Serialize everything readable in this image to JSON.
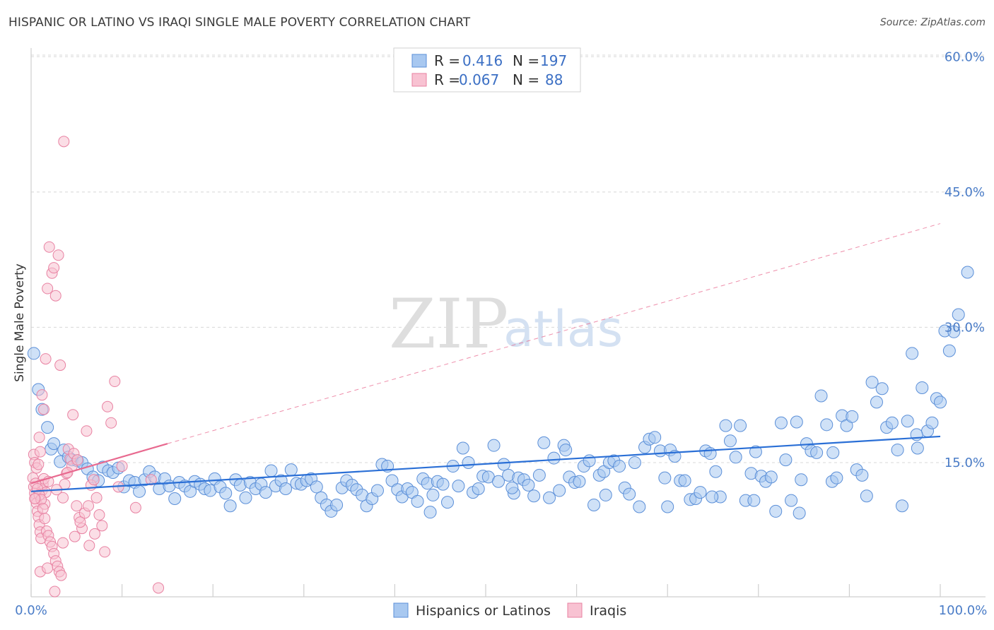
{
  "title": "HISPANIC OR LATINO VS IRAQI SINGLE MALE POVERTY CORRELATION CHART",
  "source": "Source: ZipAtlas.com",
  "watermark": {
    "zip": "ZIP",
    "atlas": "atlas"
  },
  "colors": {
    "blue_fill": "#a8c8f0",
    "blue_stroke": "#5b8fd8",
    "blue_line": "#2a6fd6",
    "pink_fill": "#f8c2d2",
    "pink_stroke": "#e882a2",
    "pink_line": "#e8698f",
    "grid": "#d8d8d8",
    "axis_text": "#4a7cc7"
  },
  "legend": {
    "rows": [
      {
        "r_label": "R =",
        "r_value": "0.416",
        "n_label": "N =",
        "n_value": "197"
      },
      {
        "r_label": "R =",
        "r_value": "0.067",
        "n_label": "N =",
        "n_value": "88"
      }
    ]
  },
  "bottom_legend": [
    "Hispanics or Latinos",
    "Iraqis"
  ],
  "chart_data": {
    "type": "scatter",
    "title": "HISPANIC OR LATINO VS IRAQI SINGLE MALE POVERTY CORRELATION CHART",
    "xlabel": "",
    "ylabel": "Single Male Poverty",
    "xlim": [
      0,
      100
    ],
    "ylim": [
      0,
      65
    ],
    "x_tick_labels": [
      "0.0%",
      "100.0%"
    ],
    "y_ticks": [
      15,
      30,
      45,
      60
    ],
    "y_tick_labels": [
      "15.0%",
      "30.0%",
      "45.0%",
      "60.0%"
    ],
    "grid": true,
    "legend_position": "top-center",
    "series": [
      {
        "name": "Hispanics or Latinos",
        "R": 0.416,
        "N": 197,
        "trend": {
          "x": [
            0,
            100
          ],
          "y": [
            11.8,
            17.9
          ]
        },
        "points": [
          [
            0.3,
            27.1
          ],
          [
            0.8,
            23.1
          ],
          [
            1.2,
            20.9
          ],
          [
            1.8,
            18.9
          ],
          [
            2.2,
            16.5
          ],
          [
            2.5,
            17.1
          ],
          [
            3.2,
            15.1
          ],
          [
            3.6,
            16.4
          ],
          [
            4.1,
            15.6
          ],
          [
            4.5,
            15.3
          ],
          [
            5.1,
            15.2
          ],
          [
            5.6,
            15.0
          ],
          [
            6.2,
            14.3
          ],
          [
            6.8,
            13.4
          ],
          [
            7.4,
            13.0
          ],
          [
            7.9,
            14.5
          ],
          [
            8.5,
            14.1
          ],
          [
            9.0,
            13.9
          ],
          [
            9.6,
            14.4
          ],
          [
            10.2,
            12.3
          ],
          [
            10.8,
            13.0
          ],
          [
            11.4,
            12.8
          ],
          [
            11.9,
            11.8
          ],
          [
            12.5,
            13.1
          ],
          [
            13.0,
            14.0
          ],
          [
            13.6,
            13.4
          ],
          [
            14.1,
            12.1
          ],
          [
            14.7,
            13.2
          ],
          [
            15.2,
            12.4
          ],
          [
            15.8,
            11.0
          ],
          [
            16.3,
            12.8
          ],
          [
            16.9,
            12.4
          ],
          [
            17.5,
            11.8
          ],
          [
            18.0,
            12.9
          ],
          [
            18.6,
            12.6
          ],
          [
            19.1,
            12.1
          ],
          [
            19.7,
            11.9
          ],
          [
            20.2,
            13.2
          ],
          [
            20.8,
            12.3
          ],
          [
            21.4,
            11.6
          ],
          [
            21.9,
            10.2
          ],
          [
            22.5,
            13.1
          ],
          [
            23.0,
            12.5
          ],
          [
            23.6,
            11.1
          ],
          [
            24.1,
            12.8
          ],
          [
            24.7,
            12.1
          ],
          [
            25.3,
            12.6
          ],
          [
            25.8,
            11.7
          ],
          [
            26.4,
            14.1
          ],
          [
            26.9,
            12.4
          ],
          [
            27.5,
            13.0
          ],
          [
            28.0,
            12.1
          ],
          [
            28.6,
            14.2
          ],
          [
            29.2,
            12.7
          ],
          [
            29.7,
            12.6
          ],
          [
            30.3,
            13.0
          ],
          [
            30.8,
            13.2
          ],
          [
            31.4,
            12.3
          ],
          [
            31.9,
            11.1
          ],
          [
            32.5,
            10.3
          ],
          [
            33.0,
            9.6
          ],
          [
            33.6,
            10.3
          ],
          [
            34.2,
            12.2
          ],
          [
            34.7,
            13.0
          ],
          [
            35.3,
            12.5
          ],
          [
            35.8,
            12.0
          ],
          [
            36.4,
            11.4
          ],
          [
            36.9,
            10.2
          ],
          [
            37.5,
            11.0
          ],
          [
            38.1,
            11.9
          ],
          [
            38.6,
            14.8
          ],
          [
            39.2,
            14.6
          ],
          [
            39.7,
            13.0
          ],
          [
            40.3,
            12.0
          ],
          [
            40.8,
            11.2
          ],
          [
            41.4,
            12.1
          ],
          [
            41.9,
            11.7
          ],
          [
            42.5,
            10.7
          ],
          [
            43.1,
            13.2
          ],
          [
            43.6,
            12.7
          ],
          [
            44.2,
            11.4
          ],
          [
            44.7,
            12.9
          ],
          [
            45.3,
            12.6
          ],
          [
            45.8,
            10.6
          ],
          [
            46.4,
            14.6
          ],
          [
            47.0,
            12.4
          ],
          [
            47.5,
            16.6
          ],
          [
            48.1,
            15.0
          ],
          [
            48.6,
            11.7
          ],
          [
            49.2,
            12.1
          ],
          [
            49.7,
            13.5
          ],
          [
            50.3,
            13.4
          ],
          [
            50.9,
            16.9
          ],
          [
            51.4,
            12.9
          ],
          [
            52.0,
            14.8
          ],
          [
            52.5,
            13.6
          ],
          [
            53.1,
            11.6
          ],
          [
            53.6,
            13.3
          ],
          [
            54.2,
            13.1
          ],
          [
            54.7,
            12.5
          ],
          [
            55.3,
            11.3
          ],
          [
            55.9,
            13.6
          ],
          [
            56.4,
            17.2
          ],
          [
            57.0,
            11.1
          ],
          [
            57.5,
            15.5
          ],
          [
            58.1,
            11.9
          ],
          [
            58.6,
            16.9
          ],
          [
            59.2,
            13.4
          ],
          [
            59.8,
            12.8
          ],
          [
            60.3,
            12.9
          ],
          [
            60.8,
            14.6
          ],
          [
            61.4,
            15.2
          ],
          [
            61.9,
            10.3
          ],
          [
            62.5,
            13.6
          ],
          [
            63.0,
            14.0
          ],
          [
            63.6,
            15.0
          ],
          [
            64.1,
            15.2
          ],
          [
            64.7,
            14.6
          ],
          [
            65.3,
            12.2
          ],
          [
            65.8,
            11.5
          ],
          [
            66.4,
            15.0
          ],
          [
            66.9,
            10.1
          ],
          [
            67.5,
            16.7
          ],
          [
            68.0,
            17.6
          ],
          [
            68.6,
            17.8
          ],
          [
            69.2,
            16.3
          ],
          [
            69.7,
            13.3
          ],
          [
            70.3,
            16.4
          ],
          [
            70.8,
            15.7
          ],
          [
            71.4,
            13.0
          ],
          [
            71.9,
            13.0
          ],
          [
            72.5,
            10.9
          ],
          [
            73.1,
            11.0
          ],
          [
            73.6,
            11.7
          ],
          [
            74.2,
            16.3
          ],
          [
            74.7,
            16.0
          ],
          [
            75.3,
            14.0
          ],
          [
            75.8,
            11.2
          ],
          [
            76.4,
            19.1
          ],
          [
            76.9,
            17.4
          ],
          [
            77.5,
            15.6
          ],
          [
            78.0,
            19.1
          ],
          [
            78.6,
            10.8
          ],
          [
            79.2,
            13.8
          ],
          [
            79.7,
            16.2
          ],
          [
            80.3,
            13.5
          ],
          [
            80.8,
            12.9
          ],
          [
            81.4,
            13.4
          ],
          [
            81.9,
            9.6
          ],
          [
            82.5,
            19.4
          ],
          [
            83.0,
            15.3
          ],
          [
            83.6,
            10.8
          ],
          [
            84.2,
            19.5
          ],
          [
            84.7,
            13.1
          ],
          [
            85.3,
            17.1
          ],
          [
            85.8,
            16.3
          ],
          [
            86.4,
            16.1
          ],
          [
            86.9,
            22.4
          ],
          [
            87.5,
            19.2
          ],
          [
            88.1,
            12.9
          ],
          [
            88.6,
            13.3
          ],
          [
            89.2,
            20.2
          ],
          [
            89.7,
            19.1
          ],
          [
            90.3,
            20.1
          ],
          [
            90.8,
            14.2
          ],
          [
            91.4,
            13.6
          ],
          [
            91.9,
            11.3
          ],
          [
            92.5,
            23.9
          ],
          [
            93.0,
            21.7
          ],
          [
            93.6,
            23.2
          ],
          [
            94.1,
            18.9
          ],
          [
            94.7,
            19.4
          ],
          [
            95.3,
            16.4
          ],
          [
            95.8,
            10.2
          ],
          [
            96.4,
            19.6
          ],
          [
            96.9,
            27.1
          ],
          [
            97.5,
            16.6
          ],
          [
            98.0,
            23.3
          ],
          [
            98.6,
            18.5
          ],
          [
            99.1,
            19.4
          ],
          [
            99.6,
            22.1
          ],
          [
            100.0,
            21.7
          ],
          [
            100.5,
            29.6
          ],
          [
            101.0,
            27.4
          ],
          [
            101.5,
            29.5
          ],
          [
            102.0,
            31.4
          ],
          [
            103.0,
            36.1
          ],
          [
            97.4,
            18.1
          ],
          [
            43.9,
            9.5
          ],
          [
            52.9,
            12.2
          ],
          [
            58.8,
            16.4
          ],
          [
            63.2,
            11.4
          ],
          [
            70.0,
            10.1
          ],
          [
            74.9,
            11.2
          ],
          [
            79.5,
            10.8
          ],
          [
            84.5,
            9.4
          ],
          [
            88.2,
            16.1
          ]
        ]
      },
      {
        "name": "Iraqis",
        "R": 0.067,
        "N": 88,
        "trend_solid": {
          "x": [
            0,
            15
          ],
          "y": [
            12.7,
            17.1
          ]
        },
        "trend_dashed": {
          "x": [
            15,
            100
          ],
          "y": [
            17.1,
            41.5
          ]
        },
        "points": [
          [
            0.2,
            13.3
          ],
          [
            0.3,
            12.3
          ],
          [
            0.4,
            11.6
          ],
          [
            0.5,
            11.0
          ],
          [
            0.6,
            10.5
          ],
          [
            0.7,
            9.6
          ],
          [
            0.8,
            9.0
          ],
          [
            0.9,
            8.1
          ],
          [
            1.0,
            7.3
          ],
          [
            1.1,
            6.6
          ],
          [
            1.2,
            11.9
          ],
          [
            1.3,
            12.6
          ],
          [
            1.4,
            13.2
          ],
          [
            1.5,
            10.4
          ],
          [
            1.6,
            11.7
          ],
          [
            0.3,
            15.9
          ],
          [
            0.4,
            15.0
          ],
          [
            0.6,
            14.4
          ],
          [
            0.8,
            14.8
          ],
          [
            1.0,
            16.2
          ],
          [
            1.2,
            22.5
          ],
          [
            1.4,
            20.9
          ],
          [
            1.6,
            26.5
          ],
          [
            1.8,
            34.3
          ],
          [
            2.0,
            38.9
          ],
          [
            2.3,
            36.0
          ],
          [
            2.5,
            36.6
          ],
          [
            2.7,
            33.5
          ],
          [
            3.0,
            38.0
          ],
          [
            3.2,
            25.8
          ],
          [
            0.5,
            12.7
          ],
          [
            0.7,
            12.1
          ],
          [
            0.9,
            11.4
          ],
          [
            1.1,
            10.9
          ],
          [
            1.3,
            9.9
          ],
          [
            1.5,
            8.8
          ],
          [
            1.7,
            7.4
          ],
          [
            1.9,
            6.9
          ],
          [
            2.1,
            6.2
          ],
          [
            2.3,
            5.7
          ],
          [
            2.5,
            4.9
          ],
          [
            2.7,
            4.1
          ],
          [
            2.9,
            3.5
          ],
          [
            3.1,
            2.9
          ],
          [
            3.3,
            2.5
          ],
          [
            3.5,
            11.1
          ],
          [
            3.7,
            12.6
          ],
          [
            3.9,
            13.8
          ],
          [
            4.1,
            16.5
          ],
          [
            4.3,
            15.4
          ],
          [
            4.5,
            14.6
          ],
          [
            4.7,
            16.0
          ],
          [
            5.0,
            10.2
          ],
          [
            5.3,
            8.9
          ],
          [
            5.6,
            7.7
          ],
          [
            5.9,
            9.4
          ],
          [
            6.1,
            18.5
          ],
          [
            6.3,
            10.2
          ],
          [
            6.6,
            12.5
          ],
          [
            6.9,
            13.1
          ],
          [
            7.2,
            11.1
          ],
          [
            7.5,
            9.2
          ],
          [
            7.8,
            8.0
          ],
          [
            8.1,
            5.1
          ],
          [
            8.4,
            21.2
          ],
          [
            8.8,
            19.4
          ],
          [
            9.2,
            24.0
          ],
          [
            9.6,
            12.3
          ],
          [
            10.0,
            14.6
          ],
          [
            3.6,
            50.6
          ],
          [
            4.6,
            20.3
          ],
          [
            5.1,
            15.3
          ],
          [
            1.0,
            2.9
          ],
          [
            1.8,
            3.3
          ],
          [
            2.6,
            0.7
          ],
          [
            3.5,
            6.1
          ],
          [
            4.8,
            6.8
          ],
          [
            5.4,
            8.4
          ],
          [
            6.4,
            5.8
          ],
          [
            7.0,
            7.1
          ],
          [
            14.0,
            1.1
          ],
          [
            13.2,
            13.1
          ],
          [
            11.5,
            10.0
          ],
          [
            0.9,
            17.8
          ],
          [
            1.9,
            12.9
          ],
          [
            2.8,
            12.0
          ],
          [
            4.0,
            13.9
          ],
          [
            0.4,
            11.0
          ]
        ]
      }
    ]
  }
}
